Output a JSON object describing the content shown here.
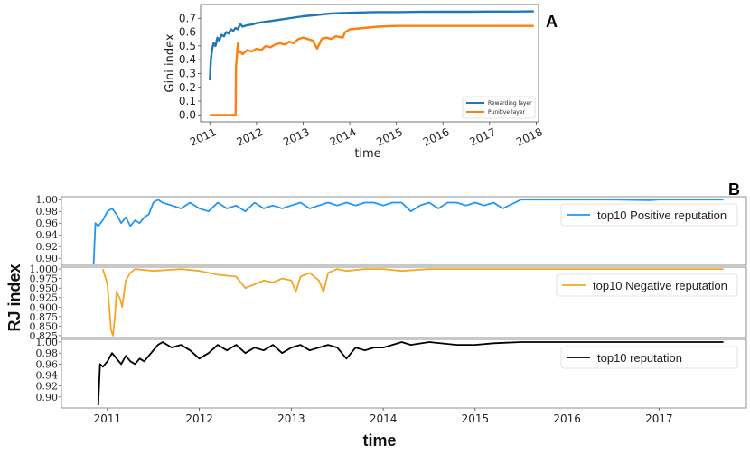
{
  "chart_data": [
    {
      "panel": "A",
      "type": "line",
      "title": "",
      "xlabel": "time",
      "ylabel": "Gini index",
      "xlim": [
        2010.8,
        2018.05
      ],
      "ylim": [
        -0.05,
        0.8
      ],
      "xticks": [
        "2011",
        "2012",
        "2013",
        "2014",
        "2015",
        "2016",
        "2017",
        "2018"
      ],
      "yticks": [
        "0.0",
        "0.1",
        "0.2",
        "0.3",
        "0.4",
        "0.5",
        "0.6",
        "0.7"
      ],
      "legend": "bottom-right",
      "series": [
        {
          "name": "Rewarding layer",
          "color": "#1f77b4",
          "x": [
            2011.0,
            2011.02,
            2011.05,
            2011.08,
            2011.12,
            2011.16,
            2011.2,
            2011.25,
            2011.3,
            2011.35,
            2011.4,
            2011.45,
            2011.5,
            2011.55,
            2011.6,
            2011.65,
            2011.7,
            2011.8,
            2011.9,
            2012.0,
            2012.2,
            2012.5,
            2012.8,
            2013.0,
            2013.3,
            2013.6,
            2014.0,
            2014.5,
            2015.0,
            2015.5,
            2016.0,
            2016.5,
            2017.0,
            2017.5,
            2017.95
          ],
          "y": [
            0.25,
            0.4,
            0.48,
            0.52,
            0.5,
            0.56,
            0.54,
            0.58,
            0.57,
            0.6,
            0.59,
            0.62,
            0.61,
            0.63,
            0.62,
            0.66,
            0.64,
            0.65,
            0.655,
            0.665,
            0.675,
            0.69,
            0.705,
            0.715,
            0.725,
            0.735,
            0.74,
            0.745,
            0.745,
            0.747,
            0.748,
            0.748,
            0.749,
            0.749,
            0.75
          ]
        },
        {
          "name": "Punitive layer",
          "color": "#ff7f0e",
          "x": [
            2011.0,
            2011.3,
            2011.55,
            2011.56,
            2011.6,
            2011.62,
            2011.65,
            2011.7,
            2011.8,
            2011.9,
            2012.0,
            2012.1,
            2012.2,
            2012.3,
            2012.4,
            2012.5,
            2012.6,
            2012.7,
            2012.8,
            2012.9,
            2013.0,
            2013.1,
            2013.2,
            2013.3,
            2013.4,
            2013.5,
            2013.6,
            2013.7,
            2013.85,
            2013.9,
            2014.0,
            2014.3,
            2014.6,
            2015.0,
            2015.5,
            2016.0,
            2016.5,
            2017.0,
            2017.5,
            2017.95
          ],
          "y": [
            0.0,
            0.0,
            0.0,
            0.35,
            0.52,
            0.45,
            0.46,
            0.44,
            0.47,
            0.46,
            0.48,
            0.47,
            0.5,
            0.49,
            0.51,
            0.52,
            0.51,
            0.53,
            0.52,
            0.55,
            0.56,
            0.55,
            0.54,
            0.48,
            0.55,
            0.56,
            0.55,
            0.57,
            0.56,
            0.6,
            0.62,
            0.63,
            0.64,
            0.645,
            0.645,
            0.645,
            0.645,
            0.645,
            0.645,
            0.645
          ]
        }
      ]
    },
    {
      "panel": "B",
      "type": "line",
      "title": "",
      "xlabel": "time",
      "ylabel": "RJ index",
      "xlim": [
        2010.5,
        2017.95
      ],
      "xticks": [
        "2011",
        "2012",
        "2013",
        "2014",
        "2015",
        "2016",
        "2017"
      ],
      "subplots": [
        {
          "name": "top10 Positive reputation",
          "color": "#2196f3",
          "ylim": [
            0.888,
            1.005
          ],
          "yticks": [
            "0.90",
            "0.92",
            "0.94",
            "0.96",
            "0.98",
            "1.00"
          ],
          "x": [
            2010.85,
            2010.87,
            2010.9,
            2010.95,
            2011.0,
            2011.05,
            2011.1,
            2011.15,
            2011.2,
            2011.25,
            2011.3,
            2011.35,
            2011.4,
            2011.45,
            2011.5,
            2011.55,
            2011.6,
            2011.7,
            2011.8,
            2011.9,
            2012.0,
            2012.1,
            2012.2,
            2012.3,
            2012.4,
            2012.5,
            2012.6,
            2012.7,
            2012.8,
            2012.9,
            2013.0,
            2013.1,
            2013.2,
            2013.3,
            2013.4,
            2013.5,
            2013.6,
            2013.7,
            2013.8,
            2013.9,
            2014.0,
            2014.1,
            2014.2,
            2014.3,
            2014.4,
            2014.5,
            2014.6,
            2014.7,
            2014.8,
            2014.9,
            2015.0,
            2015.1,
            2015.2,
            2015.3,
            2015.5,
            2015.8,
            2016.0,
            2016.5,
            2016.9,
            2017.0,
            2017.5,
            2017.7
          ],
          "y": [
            0.89,
            0.96,
            0.955,
            0.965,
            0.98,
            0.985,
            0.975,
            0.96,
            0.97,
            0.955,
            0.965,
            0.96,
            0.97,
            0.975,
            0.995,
            1.0,
            0.995,
            0.99,
            0.985,
            0.995,
            0.985,
            0.98,
            0.995,
            0.985,
            0.99,
            0.98,
            0.995,
            0.985,
            0.99,
            0.985,
            0.99,
            0.995,
            0.985,
            0.99,
            0.995,
            0.99,
            0.995,
            0.99,
            0.995,
            0.995,
            0.99,
            0.995,
            0.995,
            0.98,
            0.99,
            0.995,
            0.985,
            0.995,
            0.995,
            0.99,
            0.995,
            0.99,
            0.995,
            0.985,
            1.0,
            1.0,
            1.0,
            1.0,
            0.999,
            1.0,
            1.0,
            1.0
          ]
        },
        {
          "name": "top10 Negative reputation",
          "color": "#f5a623",
          "ylim": [
            0.82,
            1.005
          ],
          "yticks": [
            "0.825",
            "0.850",
            "0.875",
            "0.900",
            "0.925",
            "0.950",
            "0.975",
            "1.000"
          ],
          "x": [
            2010.95,
            2011.0,
            2011.02,
            2011.04,
            2011.06,
            2011.08,
            2011.1,
            2011.12,
            2011.14,
            2011.16,
            2011.2,
            2011.25,
            2011.3,
            2011.5,
            2011.8,
            2012.0,
            2012.2,
            2012.4,
            2012.5,
            2012.6,
            2012.7,
            2012.8,
            2012.9,
            2013.0,
            2013.05,
            2013.1,
            2013.2,
            2013.3,
            2013.35,
            2013.4,
            2013.5,
            2013.6,
            2013.8,
            2014.0,
            2014.2,
            2014.5,
            2015.0,
            2016.0,
            2017.0,
            2017.7
          ],
          "y": [
            1.0,
            0.96,
            0.9,
            0.84,
            0.825,
            0.87,
            0.94,
            0.93,
            0.92,
            0.9,
            0.97,
            0.99,
            1.0,
            0.995,
            1.0,
            0.995,
            0.985,
            0.98,
            0.95,
            0.96,
            0.97,
            0.965,
            0.975,
            0.97,
            0.94,
            0.98,
            0.99,
            0.97,
            0.94,
            0.99,
            1.0,
            0.995,
            1.0,
            1.0,
            0.995,
            1.0,
            1.0,
            1.0,
            1.0,
            1.0
          ]
        },
        {
          "name": "top10 reputation",
          "color": "#000000",
          "ylim": [
            0.88,
            1.005
          ],
          "yticks": [
            "0.90",
            "0.92",
            "0.94",
            "0.96",
            "0.98",
            "1.00"
          ],
          "x": [
            2010.9,
            2010.92,
            2010.95,
            2011.0,
            2011.05,
            2011.1,
            2011.15,
            2011.2,
            2011.25,
            2011.3,
            2011.35,
            2011.4,
            2011.45,
            2011.5,
            2011.55,
            2011.6,
            2011.7,
            2011.8,
            2011.9,
            2012.0,
            2012.1,
            2012.2,
            2012.3,
            2012.4,
            2012.5,
            2012.6,
            2012.7,
            2012.8,
            2012.9,
            2013.0,
            2013.1,
            2013.2,
            2013.3,
            2013.4,
            2013.5,
            2013.6,
            2013.7,
            2013.8,
            2013.9,
            2014.0,
            2014.1,
            2014.2,
            2014.3,
            2014.5,
            2014.8,
            2015.0,
            2015.2,
            2015.5,
            2016.0,
            2016.5,
            2017.0,
            2017.7
          ],
          "y": [
            0.885,
            0.96,
            0.955,
            0.965,
            0.98,
            0.97,
            0.96,
            0.975,
            0.965,
            0.96,
            0.97,
            0.965,
            0.975,
            0.985,
            0.995,
            1.0,
            0.99,
            0.995,
            0.985,
            0.97,
            0.98,
            0.995,
            0.985,
            0.995,
            0.98,
            0.99,
            0.985,
            0.995,
            0.98,
            0.99,
            0.995,
            0.985,
            0.99,
            0.995,
            0.99,
            0.97,
            0.99,
            0.985,
            0.99,
            0.99,
            0.995,
            1.0,
            0.995,
            1.0,
            0.995,
            0.995,
            0.998,
            1.0,
            1.0,
            1.0,
            1.0,
            1.0
          ]
        }
      ]
    }
  ],
  "labels": {
    "panel_a": "A",
    "panel_b": "B"
  }
}
